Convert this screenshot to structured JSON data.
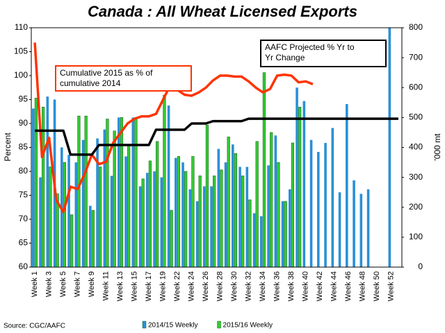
{
  "chart_data": {
    "type": "bar_line",
    "title": "Canada : All Wheat Licensed Exports",
    "y_label": "Percent",
    "y2_label": "'000 mt",
    "source": "Source: CGC/AAFC",
    "categories": [
      "Week 1",
      null,
      "Week 3",
      null,
      "Week 5",
      null,
      "Week 7",
      null,
      "Week 9",
      null,
      "Week 11",
      null,
      "Week 13",
      null,
      "Week 15",
      null,
      "Week 17",
      null,
      "Week 19",
      null,
      "Week 22",
      null,
      "Week 24",
      null,
      "Week 26",
      null,
      "Week 28",
      null,
      "Week 30",
      null,
      "Week 32",
      null,
      "Week 34",
      null,
      "Week 36",
      null,
      "Week 38",
      null,
      "Week 40",
      null,
      "Week 42",
      null,
      "Week 44",
      null,
      "Week 46",
      null,
      "Week 48",
      null,
      "Week 50",
      null,
      "Week 52",
      null
    ],
    "ylim": [
      60,
      110
    ],
    "yticks": [
      60,
      65,
      70,
      75,
      80,
      85,
      90,
      95,
      100,
      105,
      110
    ],
    "y2lim": [
      0,
      800
    ],
    "y2ticks": [
      0,
      100,
      200,
      300,
      400,
      500,
      600,
      700,
      800
    ],
    "legend": "bottom",
    "series": [
      {
        "name": "2014/15 Weekly",
        "type": "bar",
        "axis": "y2",
        "color": "#2b8fd8",
        "values": [
          530,
          300,
          570,
          560,
          400,
          375,
          350,
          425,
          205,
          430,
          460,
          305,
          500,
          370,
          500,
          270,
          315,
          320,
          300,
          540,
          365,
          350,
          260,
          220,
          270,
          270,
          395,
          350,
          410,
          335,
          335,
          180,
          170,
          340,
          440,
          220,
          260,
          600,
          555,
          425,
          385,
          415,
          465,
          250,
          545,
          290,
          245,
          260,
          null,
          null,
          800,
          null
        ]
      },
      {
        "name": "2015/16 Weekly",
        "type": "bar",
        "axis": "y2",
        "color": "#33cc33",
        "values": [
          565,
          535,
          335,
          245,
          350,
          175,
          505,
          505,
          190,
          335,
          495,
          455,
          500,
          405,
          500,
          295,
          355,
          420,
          575,
          190,
          370,
          320,
          370,
          305,
          475,
          305,
          325,
          435,
          380,
          305,
          225,
          420,
          650,
          450,
          350,
          220,
          415,
          535,
          null,
          null,
          null,
          null,
          null,
          null,
          null,
          null,
          null,
          null,
          null,
          null,
          null,
          null
        ]
      },
      {
        "type": "line",
        "color": "#ff3300",
        "values": [
          106.9,
          83,
          87,
          74,
          71.5,
          76.8,
          76.3,
          79.5,
          83.5,
          81.5,
          82,
          86,
          88,
          90,
          91,
          91.5,
          91.5,
          92,
          95,
          98,
          97,
          96,
          95.8,
          96.5,
          97.5,
          99,
          100,
          100,
          99.8,
          99.8,
          98.8,
          97.5,
          96.5,
          97.2,
          100,
          100.2,
          100,
          98.6,
          98.8,
          98.2,
          null,
          null,
          null,
          null,
          null,
          null,
          null,
          null,
          null,
          null,
          null,
          null
        ]
      },
      {
        "type": "line",
        "color": "#000000",
        "values": [
          88.5,
          88.5,
          88.5,
          88.5,
          88.5,
          83.5,
          83.5,
          83.5,
          83.5,
          85.5,
          85.5,
          85.5,
          85.5,
          85.5,
          85.5,
          85.5,
          85.5,
          88.7,
          88.7,
          88.7,
          88.7,
          88.7,
          90,
          90,
          90,
          90.5,
          90.5,
          90.5,
          90.5,
          90.5,
          91,
          91,
          91,
          91,
          91,
          91,
          91,
          91,
          91,
          91,
          91,
          91,
          91,
          91,
          91,
          91,
          91,
          91,
          91,
          91,
          91,
          91
        ]
      }
    ],
    "annotations": [
      {
        "lines": [
          "Cumulative 2015 as % of",
          "cumulative 2014"
        ],
        "color": "#ff3300"
      },
      {
        "lines": [
          "AAFC Projected % Yr to",
          "Yr Change"
        ],
        "color": "#000000"
      }
    ]
  }
}
